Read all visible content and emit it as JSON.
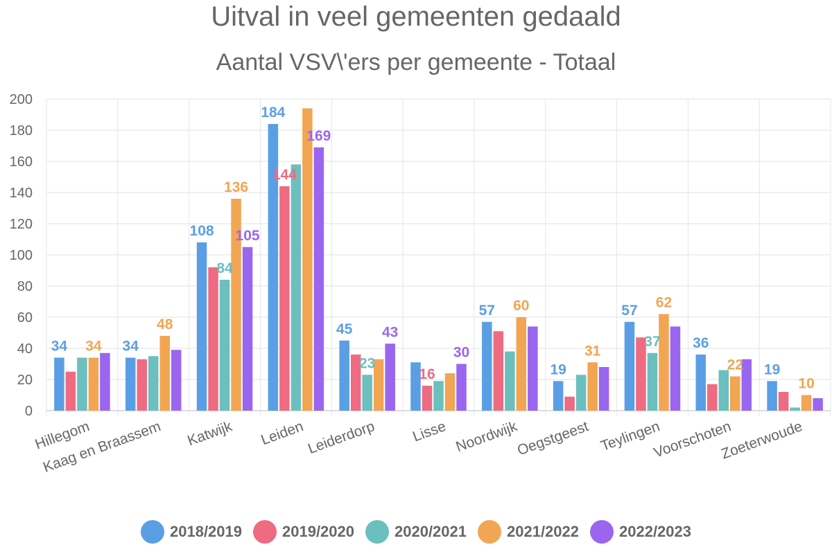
{
  "chart_data": {
    "type": "bar",
    "title": "Uitval in veel gemeenten gedaald",
    "subtitle": "Aantal VSV\\'ers per gemeente - Totaal",
    "categories": [
      "Hillegom",
      "Kaag en Braassem",
      "Katwijk",
      "Leiden",
      "Leiderdorp",
      "Lisse",
      "Noordwijk",
      "Oegstgeest",
      "Teylingen",
      "Voorschoten",
      "Zoeterwoude"
    ],
    "ylim": [
      0,
      200
    ],
    "yticks": [
      0,
      20,
      40,
      60,
      80,
      100,
      120,
      140,
      160,
      180,
      200
    ],
    "grid": true,
    "legend_position": "bottom",
    "series": [
      {
        "name": "2018/2019",
        "color": "#5A9FE5",
        "values": [
          34,
          34,
          108,
          184,
          45,
          31,
          57,
          19,
          57,
          36,
          19
        ]
      },
      {
        "name": "2019/2020",
        "color": "#EE6B82",
        "values": [
          25,
          33,
          92,
          144,
          36,
          16,
          51,
          9,
          47,
          17,
          12
        ]
      },
      {
        "name": "2020/2021",
        "color": "#6CBFBF",
        "values": [
          34,
          35,
          84,
          158,
          23,
          19,
          38,
          23,
          37,
          26,
          2
        ]
      },
      {
        "name": "2021/2022",
        "color": "#F2A552",
        "values": [
          34,
          48,
          136,
          194,
          33,
          24,
          60,
          31,
          62,
          22,
          10
        ]
      },
      {
        "name": "2022/2023",
        "color": "#9A66F0",
        "values": [
          37,
          39,
          105,
          169,
          43,
          30,
          54,
          28,
          54,
          33,
          8
        ]
      }
    ],
    "data_labels": [
      {
        "series": 0,
        "category": 0,
        "text": "34"
      },
      {
        "series": 3,
        "category": 0,
        "text": "34"
      },
      {
        "series": 0,
        "category": 1,
        "text": "34"
      },
      {
        "series": 3,
        "category": 1,
        "text": "48"
      },
      {
        "series": 0,
        "category": 2,
        "text": "108"
      },
      {
        "series": 2,
        "category": 2,
        "text": "84"
      },
      {
        "series": 3,
        "category": 2,
        "text": "136"
      },
      {
        "series": 4,
        "category": 2,
        "text": "105"
      },
      {
        "series": 0,
        "category": 3,
        "text": "184"
      },
      {
        "series": 1,
        "category": 3,
        "text": "144"
      },
      {
        "series": 4,
        "category": 3,
        "text": "169"
      },
      {
        "series": 0,
        "category": 4,
        "text": "45"
      },
      {
        "series": 2,
        "category": 4,
        "text": "23"
      },
      {
        "series": 4,
        "category": 4,
        "text": "43"
      },
      {
        "series": 1,
        "category": 5,
        "text": "16"
      },
      {
        "series": 4,
        "category": 5,
        "text": "30"
      },
      {
        "series": 0,
        "category": 6,
        "text": "57"
      },
      {
        "series": 3,
        "category": 6,
        "text": "60"
      },
      {
        "series": 0,
        "category": 7,
        "text": "19"
      },
      {
        "series": 3,
        "category": 7,
        "text": "31"
      },
      {
        "series": 0,
        "category": 8,
        "text": "57"
      },
      {
        "series": 2,
        "category": 8,
        "text": "37"
      },
      {
        "series": 3,
        "category": 8,
        "text": "62"
      },
      {
        "series": 0,
        "category": 9,
        "text": "36"
      },
      {
        "series": 3,
        "category": 9,
        "text": "22"
      },
      {
        "series": 0,
        "category": 10,
        "text": "19"
      },
      {
        "series": 3,
        "category": 10,
        "text": "10"
      }
    ]
  }
}
